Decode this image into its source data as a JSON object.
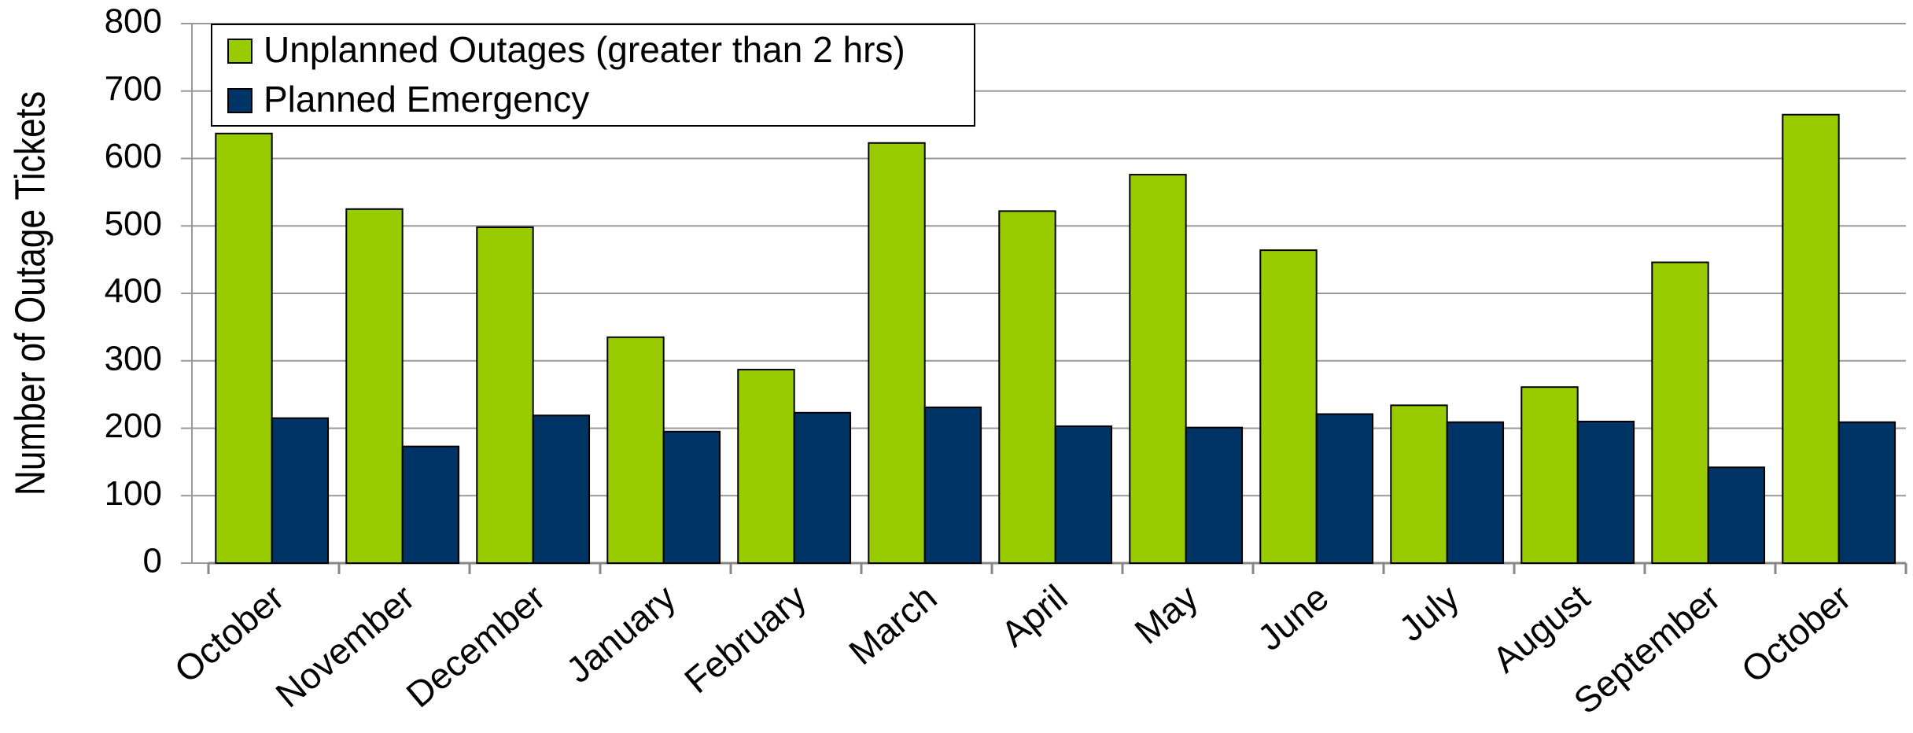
{
  "chart_data": {
    "type": "bar",
    "y_label": "Number of Outage Tickets",
    "categories": [
      "October",
      "November",
      "December",
      "January",
      "February",
      "March",
      "April",
      "May",
      "June",
      "July",
      "August",
      "September",
      "October"
    ],
    "series": [
      {
        "name": "Unplanned Outages (greater than 2 hrs)",
        "color": "#99cc00",
        "values": [
          637,
          525,
          498,
          335,
          287,
          623,
          522,
          576,
          464,
          234,
          261,
          446,
          665
        ]
      },
      {
        "name": "Planned Emergency",
        "color": "#003366",
        "values": [
          215,
          173,
          219,
          195,
          223,
          231,
          203,
          201,
          221,
          209,
          210,
          142,
          209
        ]
      }
    ],
    "ylim": [
      0,
      800
    ],
    "yticks": [
      0,
      100,
      200,
      300,
      400,
      500,
      600,
      700,
      800
    ],
    "grid": true,
    "legend": "upper left"
  }
}
